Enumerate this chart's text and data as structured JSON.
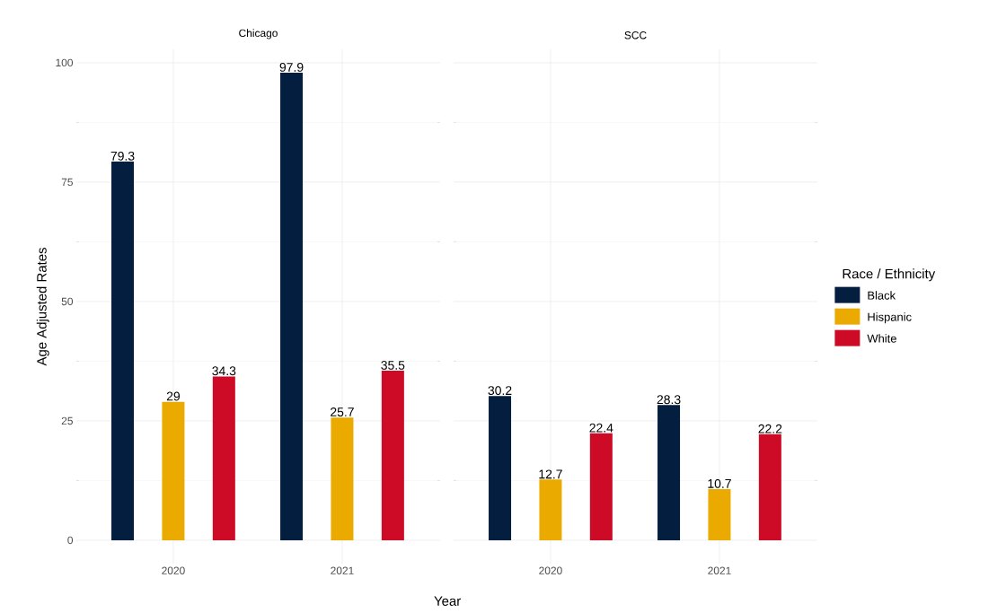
{
  "chart_data": [
    {
      "type": "bar",
      "title": "Chicago",
      "xlabel": "Year",
      "ylabel": "Age Adjusted Rates",
      "categories": [
        "2020",
        "2021"
      ],
      "series": [
        {
          "color": "#031E3F",
          "values": [
            79.3,
            97.9
          ]
        },
        {
          "color": "#EAAA00",
          "values": [
            29,
            25.7
          ]
        },
        {
          "color": "#CE0B26",
          "values": [
            34.3,
            35.5
          ]
        }
      ],
      "ylim": [
        -4.9,
        102.8
      ],
      "yticks": [
        0,
        25,
        50,
        75,
        100
      ],
      "grid": true,
      "data_labels": true
    },
    {
      "type": "bar",
      "title": "SCC",
      "legend_title": "Race / Ethnicity",
      "legend": "right",
      "categories": [
        "2020",
        "2021"
      ],
      "series": [
        {
          "name": "Black",
          "color": "#031E3F",
          "values": [
            30.2,
            28.3
          ]
        },
        {
          "name": "Hispanic",
          "color": "#EAAA00",
          "values": [
            12.7,
            10.7
          ]
        },
        {
          "name": "White",
          "color": "#CE0B26",
          "values": [
            22.4,
            22.2
          ]
        }
      ],
      "ylim": [
        -4.9,
        102.8
      ],
      "yticks": [
        0,
        25,
        50,
        75,
        100
      ],
      "grid": true,
      "data_labels": true,
      "tick_labels": "x"
    }
  ]
}
